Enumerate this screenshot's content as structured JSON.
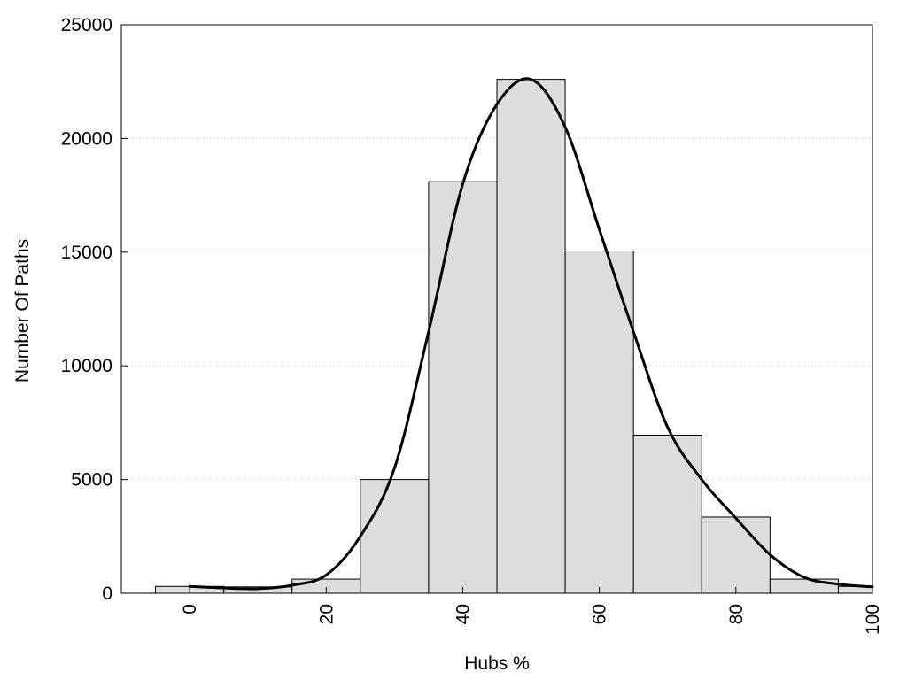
{
  "chart_data": {
    "type": "bar",
    "title": "",
    "xlabel": "Hubs %",
    "ylabel": "Number Of Paths",
    "xlim": [
      -10,
      100
    ],
    "ylim": [
      0,
      25000
    ],
    "x_ticks": [
      0,
      20,
      40,
      60,
      80,
      100
    ],
    "y_ticks": [
      0,
      5000,
      10000,
      15000,
      20000,
      25000
    ],
    "grid": "horizontal dotted",
    "bin_width": 10,
    "bins": [
      {
        "center": 0,
        "value": 300
      },
      {
        "center": 10,
        "value": 280
      },
      {
        "center": 20,
        "value": 620
      },
      {
        "center": 30,
        "value": 5000
      },
      {
        "center": 40,
        "value": 18100
      },
      {
        "center": 50,
        "value": 22600
      },
      {
        "center": 60,
        "value": 15050
      },
      {
        "center": 70,
        "value": 6950
      },
      {
        "center": 80,
        "value": 3350
      },
      {
        "center": 90,
        "value": 620
      },
      {
        "center": 100,
        "value": 300
      }
    ],
    "density_curve": {
      "x": [
        0,
        5,
        10,
        15,
        20,
        25,
        30,
        35,
        40,
        45,
        50,
        55,
        60,
        65,
        70,
        75,
        80,
        85,
        90,
        95,
        100
      ],
      "y": [
        300,
        230,
        200,
        350,
        800,
        2500,
        5500,
        11500,
        18000,
        21500,
        22600,
        20500,
        16000,
        11500,
        7300,
        5000,
        3300,
        1700,
        700,
        400,
        280
      ]
    },
    "colors": {
      "bar_fill": "#dddddd",
      "bar_stroke": "#000000",
      "curve": "#000000",
      "grid": "#cccccc"
    }
  }
}
